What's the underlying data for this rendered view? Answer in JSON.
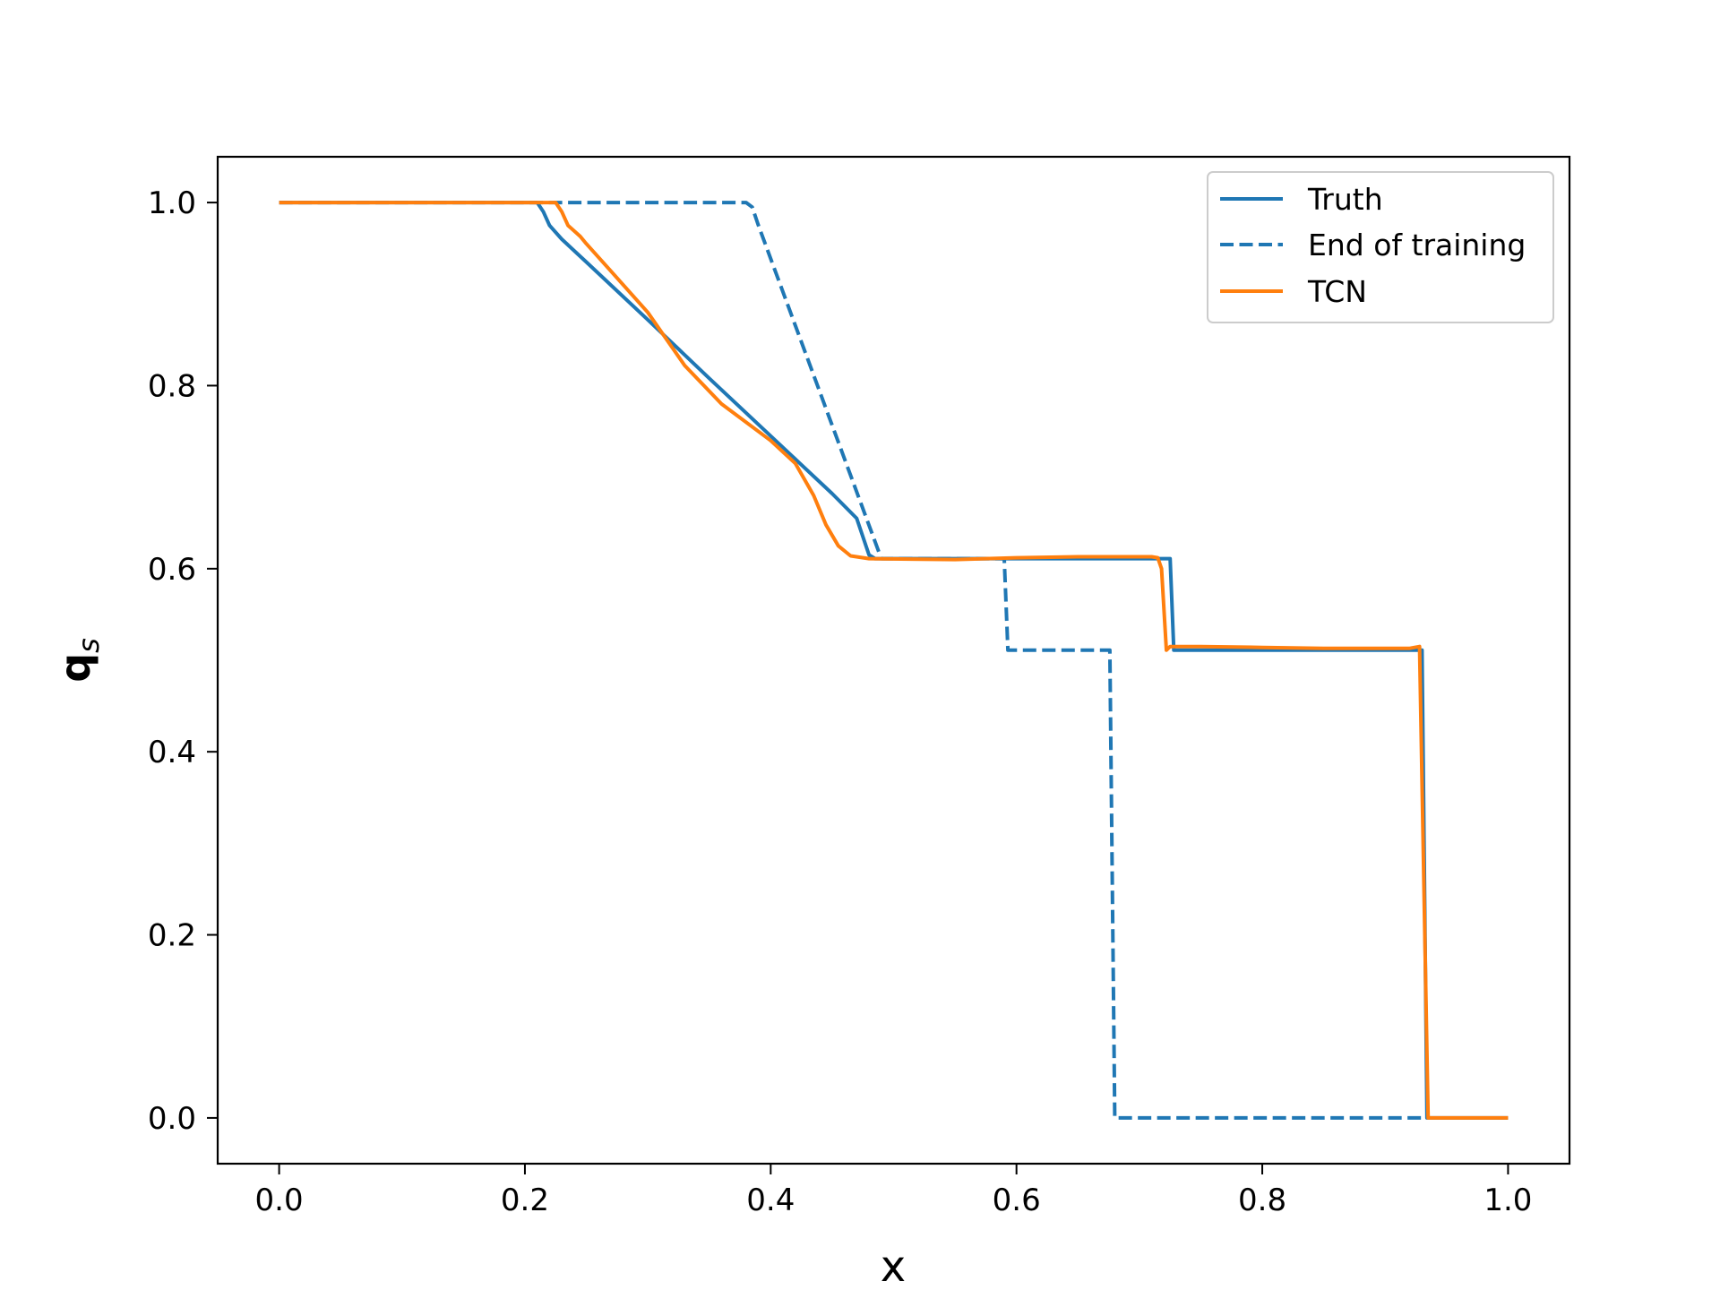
{
  "chart_data": {
    "type": "line",
    "xlabel": "x",
    "ylabel_main": "q",
    "ylabel_sub": "s",
    "xlim": [
      -0.05,
      1.05
    ],
    "ylim": [
      -0.05,
      1.05
    ],
    "xticks": [
      0.0,
      0.2,
      0.4,
      0.6,
      0.8,
      1.0
    ],
    "xtick_labels": [
      "0.0",
      "0.2",
      "0.4",
      "0.6",
      "0.8",
      "1.0"
    ],
    "yticks": [
      0.0,
      0.2,
      0.4,
      0.6,
      0.8,
      1.0
    ],
    "ytick_labels": [
      "0.0",
      "0.2",
      "0.4",
      "0.6",
      "0.8",
      "1.0"
    ],
    "grid": false,
    "legend_position": "upper-right",
    "series": [
      {
        "name": "Truth",
        "color": "#1f77b4",
        "dash": "solid",
        "points": [
          [
            0.0,
            1.0
          ],
          [
            0.21,
            1.0
          ],
          [
            0.215,
            0.99
          ],
          [
            0.22,
            0.975
          ],
          [
            0.23,
            0.96
          ],
          [
            0.25,
            0.935
          ],
          [
            0.3,
            0.872
          ],
          [
            0.35,
            0.808
          ],
          [
            0.4,
            0.745
          ],
          [
            0.45,
            0.682
          ],
          [
            0.47,
            0.655
          ],
          [
            0.48,
            0.615
          ],
          [
            0.485,
            0.611
          ],
          [
            0.6,
            0.611
          ],
          [
            0.725,
            0.611
          ],
          [
            0.728,
            0.511
          ],
          [
            0.93,
            0.511
          ],
          [
            0.934,
            0.0
          ],
          [
            1.0,
            0.0
          ]
        ]
      },
      {
        "name": "End of training",
        "color": "#1f77b4",
        "dash": "dashed",
        "points": [
          [
            0.0,
            1.0
          ],
          [
            0.38,
            1.0
          ],
          [
            0.385,
            0.995
          ],
          [
            0.39,
            0.975
          ],
          [
            0.49,
            0.611
          ],
          [
            0.495,
            0.611
          ],
          [
            0.59,
            0.611
          ],
          [
            0.593,
            0.511
          ],
          [
            0.676,
            0.511
          ],
          [
            0.68,
            0.0
          ],
          [
            0.934,
            0.0
          ]
        ]
      },
      {
        "name": "TCN",
        "color": "#ff7f0e",
        "dash": "solid",
        "points": [
          [
            0.0,
            1.0
          ],
          [
            0.225,
            1.0
          ],
          [
            0.23,
            0.99
          ],
          [
            0.235,
            0.975
          ],
          [
            0.245,
            0.963
          ],
          [
            0.25,
            0.955
          ],
          [
            0.27,
            0.925
          ],
          [
            0.3,
            0.88
          ],
          [
            0.33,
            0.822
          ],
          [
            0.36,
            0.78
          ],
          [
            0.4,
            0.74
          ],
          [
            0.42,
            0.715
          ],
          [
            0.435,
            0.68
          ],
          [
            0.445,
            0.648
          ],
          [
            0.455,
            0.625
          ],
          [
            0.465,
            0.614
          ],
          [
            0.48,
            0.611
          ],
          [
            0.55,
            0.61
          ],
          [
            0.6,
            0.612
          ],
          [
            0.65,
            0.613
          ],
          [
            0.71,
            0.613
          ],
          [
            0.715,
            0.612
          ],
          [
            0.718,
            0.6
          ],
          [
            0.722,
            0.511
          ],
          [
            0.725,
            0.515
          ],
          [
            0.75,
            0.515
          ],
          [
            0.8,
            0.514
          ],
          [
            0.85,
            0.513
          ],
          [
            0.92,
            0.513
          ],
          [
            0.928,
            0.515
          ],
          [
            0.935,
            0.0
          ],
          [
            1.0,
            0.0
          ]
        ]
      }
    ]
  }
}
